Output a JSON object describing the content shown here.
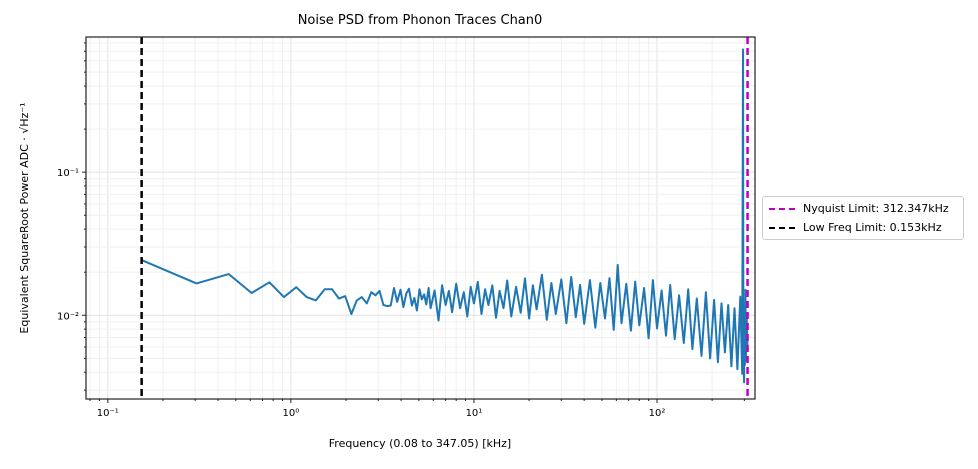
{
  "chart_data": {
    "type": "line",
    "title": "Noise PSD from Phonon Traces Chan0",
    "xlabel": "Frequency (0.08 to 347.05) [kHz]",
    "ylabel": "Equivalent SquareRoot Power ADC · √Hz⁻¹",
    "xscale": "log",
    "yscale": "log",
    "xlim": [
      0.076,
      343
    ],
    "ylim": [
      0.0026,
      0.88
    ],
    "grid": true,
    "xticks": [
      "10⁻¹",
      "10⁰",
      "10¹",
      "10²"
    ],
    "yticks": [
      "10⁻¹",
      "10⁻²"
    ],
    "legend_placement": "center-right outside",
    "series": [
      {
        "color": "#1f77b4",
        "x": [
          0.153,
          0.305,
          0.458,
          0.61,
          0.763,
          0.916,
          1.07,
          1.22,
          1.37,
          1.53,
          1.68,
          1.83,
          1.98,
          2.14,
          2.29,
          2.44,
          2.6,
          2.75,
          2.9,
          3.05,
          3.2,
          3.36,
          3.51,
          3.66,
          3.81,
          3.97,
          4.12,
          4.27,
          4.42,
          4.58,
          4.73,
          4.88,
          5.04,
          5.19,
          5.34,
          5.49,
          5.65,
          5.8,
          6.1,
          6.4,
          6.7,
          7.0,
          7.3,
          7.6,
          8.0,
          8.4,
          8.8,
          9.2,
          9.6,
          10,
          10.5,
          11,
          11.5,
          12,
          12.6,
          13.2,
          13.8,
          14.5,
          15.2,
          16,
          17,
          18,
          19,
          20,
          21,
          22,
          23.5,
          25,
          26.5,
          28,
          30,
          32,
          34,
          36,
          38,
          40,
          43,
          46,
          49,
          52,
          55,
          58,
          61,
          64,
          68,
          72,
          76,
          80,
          85,
          90,
          95,
          100,
          106,
          112,
          118,
          125,
          132,
          140,
          148,
          156,
          165,
          175,
          185,
          195,
          205,
          215,
          225,
          235,
          245,
          255,
          265,
          275,
          285,
          292,
          295,
          296,
          299,
          300.5,
          302,
          304,
          306,
          309,
          312
        ],
        "y": [
          0.0243,
          0.0167,
          0.0194,
          0.0143,
          0.017,
          0.0134,
          0.0157,
          0.0134,
          0.0127,
          0.0152,
          0.0152,
          0.0131,
          0.0136,
          0.0102,
          0.0127,
          0.0134,
          0.0121,
          0.0145,
          0.0138,
          0.0148,
          0.0118,
          0.0116,
          0.0117,
          0.0155,
          0.0124,
          0.0151,
          0.0114,
          0.0142,
          0.0153,
          0.0117,
          0.0132,
          0.0108,
          0.0152,
          0.0129,
          0.014,
          0.0119,
          0.0155,
          0.0112,
          0.0149,
          0.0092,
          0.0162,
          0.0118,
          0.0148,
          0.0105,
          0.0166,
          0.0112,
          0.0145,
          0.0098,
          0.0158,
          0.0121,
          0.0171,
          0.0102,
          0.0152,
          0.0118,
          0.0162,
          0.0096,
          0.0148,
          0.0112,
          0.0175,
          0.0098,
          0.0158,
          0.0104,
          0.0181,
          0.0095,
          0.0162,
          0.011,
          0.0192,
          0.0093,
          0.0168,
          0.0102,
          0.0178,
          0.0088,
          0.0185,
          0.0097,
          0.0163,
          0.0087,
          0.0176,
          0.0082,
          0.0168,
          0.0095,
          0.0182,
          0.0079,
          0.0225,
          0.0088,
          0.0166,
          0.0078,
          0.0172,
          0.0085,
          0.0155,
          0.0069,
          0.0176,
          0.0081,
          0.0149,
          0.0072,
          0.0163,
          0.0068,
          0.0138,
          0.0064,
          0.0152,
          0.0058,
          0.0131,
          0.0052,
          0.0145,
          0.005,
          0.0128,
          0.0047,
          0.0121,
          0.0055,
          0.0118,
          0.0044,
          0.0112,
          0.0042,
          0.0135,
          0.0039,
          0.72,
          0.0062,
          0.0034,
          0.0105,
          0.0045,
          0.0151,
          0.0048,
          0.0098,
          0.006
        ]
      }
    ],
    "vlines": [
      {
        "label": "Nyquist Limit: 312.347kHz",
        "x": 312.347,
        "color": "#bf00bf"
      },
      {
        "label": "Low Freq Limit: 0.153kHz",
        "x": 0.153,
        "color": "#000000"
      }
    ]
  }
}
